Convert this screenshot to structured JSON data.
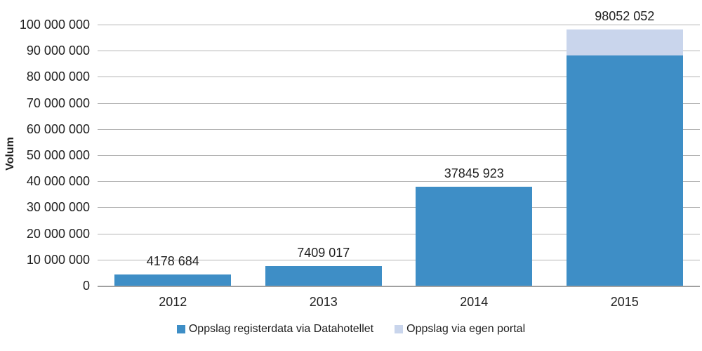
{
  "chart_data": {
    "type": "bar",
    "stacked": true,
    "title": "",
    "xlabel": "",
    "ylabel": "Volum",
    "categories": [
      "2012",
      "2013",
      "2014",
      "2015"
    ],
    "series": [
      {
        "name": "Oppslag registerdata via Datahotellet",
        "color": "#3E8EC6",
        "values": [
          4178684,
          7409017,
          37845923,
          88200000
        ]
      },
      {
        "name": "Oppslag via egen portal",
        "color": "#C9D5EC",
        "values": [
          0,
          0,
          0,
          9852052
        ]
      }
    ],
    "bar_total_labels": [
      "4178 684",
      "7409 017",
      "37845 923",
      "98052 052"
    ],
    "ylim": [
      0,
      100000000
    ],
    "yticks": [
      {
        "value": 0,
        "label": "0"
      },
      {
        "value": 10000000,
        "label": "10 000 000"
      },
      {
        "value": 20000000,
        "label": "20 000 000"
      },
      {
        "value": 30000000,
        "label": "30 000 000"
      },
      {
        "value": 40000000,
        "label": "40 000 000"
      },
      {
        "value": 50000000,
        "label": "50 000 000"
      },
      {
        "value": 60000000,
        "label": "60 000 000"
      },
      {
        "value": 70000000,
        "label": "70 000 000"
      },
      {
        "value": 80000000,
        "label": "80 000 000"
      },
      {
        "value": 90000000,
        "label": "90 000 000"
      },
      {
        "value": 100000000,
        "label": "100 000 000"
      }
    ],
    "grid": true,
    "legend_position": "bottom"
  }
}
